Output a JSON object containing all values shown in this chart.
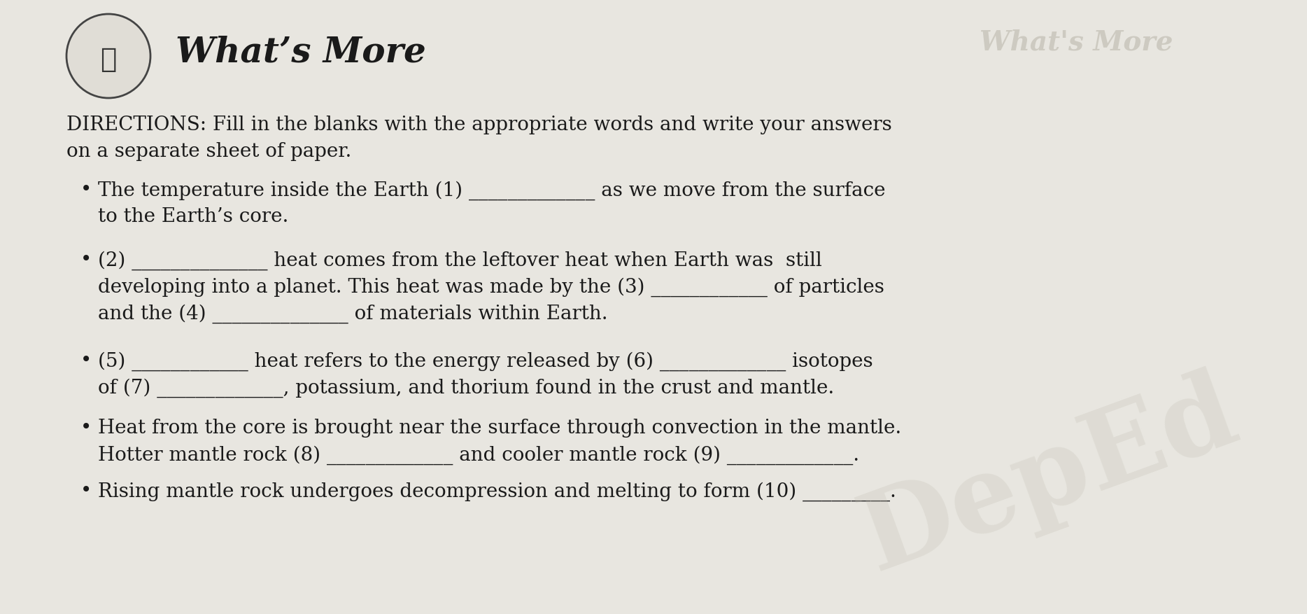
{
  "background_color": "#e8e6e0",
  "title": "What’s More",
  "title_fontsize": 36,
  "directions_fontsize": 20,
  "bullet_fontsize": 20,
  "text_color": "#1a1a1a",
  "watermark_color": "#c8c4b8",
  "line1_bullet1": "The temperature inside the Earth (1) _____________ as we move from the surface",
  "line2_bullet1": "    to the Earth’s core.",
  "line1_bullet2": "(2) ______________ heat comes from the leftover heat when Earth was  still",
  "line2_bullet2": "    developing into a planet. This heat was made by the (3) ____________ of particles",
  "line3_bullet2": "    and the (4) ______________ of materials within Earth.",
  "line1_bullet3": "(5) ____________ heat refers to the energy released by (6) _____________ isotopes",
  "line2_bullet3": "    of (7) _____________, potassium, and thorium found in the crust and mantle.",
  "line1_bullet4": "Heat from the core is brought near the surface through convection in the mantle.",
  "line2_bullet4": "    Hotter mantle rock (8) _____________ and cooler mantle rock (9) _____________.",
  "line1_bullet5": "Rising mantle rock undergoes decompression and melting to form (10) _________."
}
